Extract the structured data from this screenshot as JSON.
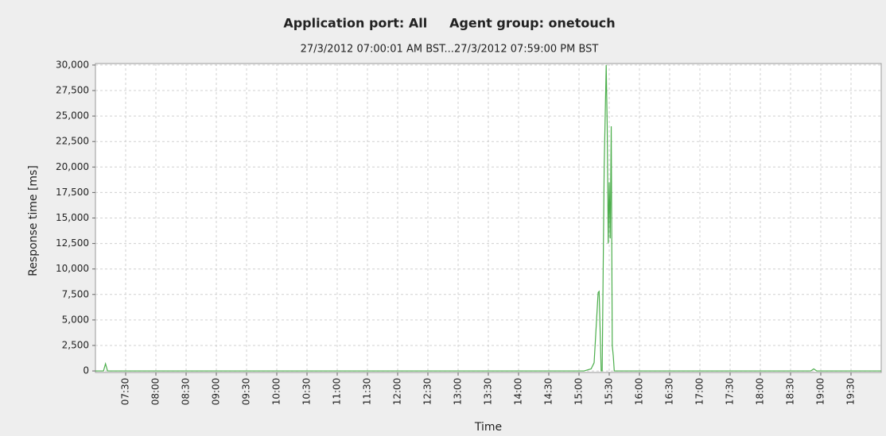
{
  "chart_data": {
    "type": "line",
    "title": "Application port: All     Agent group: onetouch",
    "subtitle": "27/3/2012 07:00:01 AM BST...27/3/2012 07:59:00 PM BST",
    "x_label": "Time",
    "y_label": "Response time [ms]",
    "x": [
      "07:00",
      "07:08",
      "07:10",
      "07:12",
      "15:05",
      "15:12",
      "15:15",
      "15:19",
      "15:20",
      "15:22",
      "15:23",
      "15:25",
      "15:27",
      "15:28",
      "15:29",
      "15:30",
      "15:31",
      "15:32",
      "15:33",
      "15:34",
      "15:35",
      "15:37",
      "18:50",
      "18:53",
      "18:56",
      "20:00"
    ],
    "series": [
      {
        "name": "Response time",
        "color": "#4cae4c",
        "values": [
          0,
          0,
          700,
          0,
          0,
          200,
          800,
          7700,
          7800,
          0,
          0,
          20000,
          30000,
          24000,
          12500,
          18500,
          13000,
          24000,
          2500,
          1500,
          0,
          0,
          0,
          200,
          0,
          0
        ]
      }
    ],
    "xlim": [
      "07:00",
      "20:00"
    ],
    "xticks": [
      "07:30",
      "08:00",
      "08:30",
      "09:00",
      "09:30",
      "10:00",
      "10:30",
      "11:00",
      "11:30",
      "12:00",
      "12:30",
      "13:00",
      "13:30",
      "14:00",
      "14:30",
      "15:00",
      "15:30",
      "16:00",
      "16:30",
      "17:00",
      "17:30",
      "18:00",
      "18:30",
      "19:00",
      "19:30"
    ],
    "ylim": [
      -150,
      30150
    ],
    "yticks": [
      0,
      {
        "value": 2500,
        "label": "2,500"
      },
      {
        "value": 5000,
        "label": "5,000"
      },
      {
        "value": 7500,
        "label": "7,500"
      },
      {
        "value": 10000,
        "label": "10,000"
      },
      {
        "value": 12500,
        "label": "12,500"
      },
      {
        "value": 15000,
        "label": "15,000"
      },
      {
        "value": 17500,
        "label": "17,500"
      },
      {
        "value": 20000,
        "label": "20,000"
      },
      {
        "value": 22500,
        "label": "22,500"
      },
      {
        "value": 25000,
        "label": "25,000"
      },
      {
        "value": 27500,
        "label": "27,500"
      },
      {
        "value": 30000,
        "label": "30,000"
      }
    ],
    "grid": true
  }
}
